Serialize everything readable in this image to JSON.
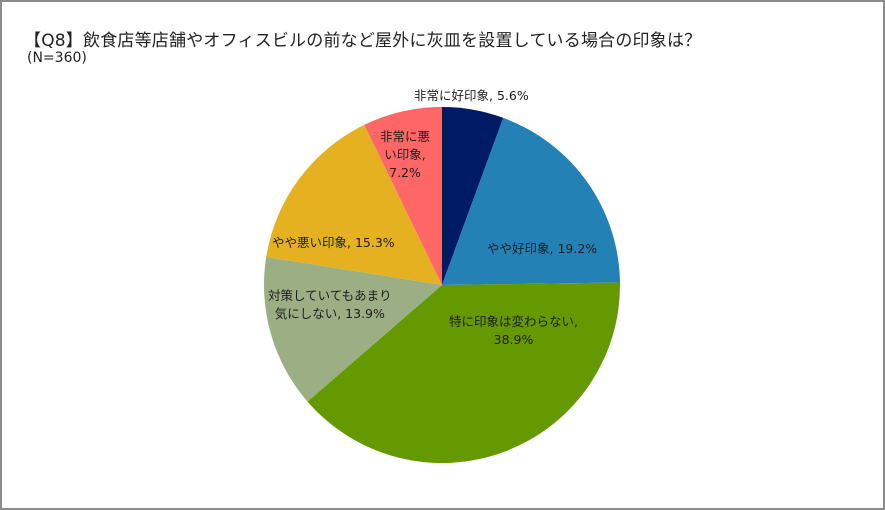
{
  "chart_data": {
    "type": "pie",
    "title": "【Q8】飲食店等店舗やオフィスビルの前など屋外に灰皿を設置している場合の印象は？",
    "subtitle": "(N=360)",
    "categories": [
      "非常に好印象",
      "やや好印象",
      "特に印象は変わらない",
      "対策していてもあまり気にしない",
      "やや悪い印象",
      "非常に悪い印象"
    ],
    "values": [
      5.6,
      19.2,
      38.9,
      13.9,
      15.3,
      7.2
    ],
    "unit": "%",
    "colors": [
      "#001b66",
      "#2381b6",
      "#649900",
      "#9caf84",
      "#e5b120",
      "#ff6666"
    ],
    "start_angle_deg": 0,
    "direction": "clockwise",
    "labels": [
      {
        "line1": "非常に好印象, 5.6%",
        "line2": "",
        "line3": ""
      },
      {
        "line1": "やや好印象, 19.2%",
        "line2": "",
        "line3": ""
      },
      {
        "line1": "特に印象は変わらない,",
        "line2": "38.9%",
        "line3": ""
      },
      {
        "line1": "対策していてもあまり",
        "line2": "気にしない, 13.9%",
        "line3": ""
      },
      {
        "line1": "やや悪い印象, 15.3%",
        "line2": "",
        "line3": ""
      },
      {
        "line1": "非常に悪",
        "line2": "い印象,",
        "line3": "7.2%"
      }
    ],
    "legend": "none (data labels on slices)"
  }
}
